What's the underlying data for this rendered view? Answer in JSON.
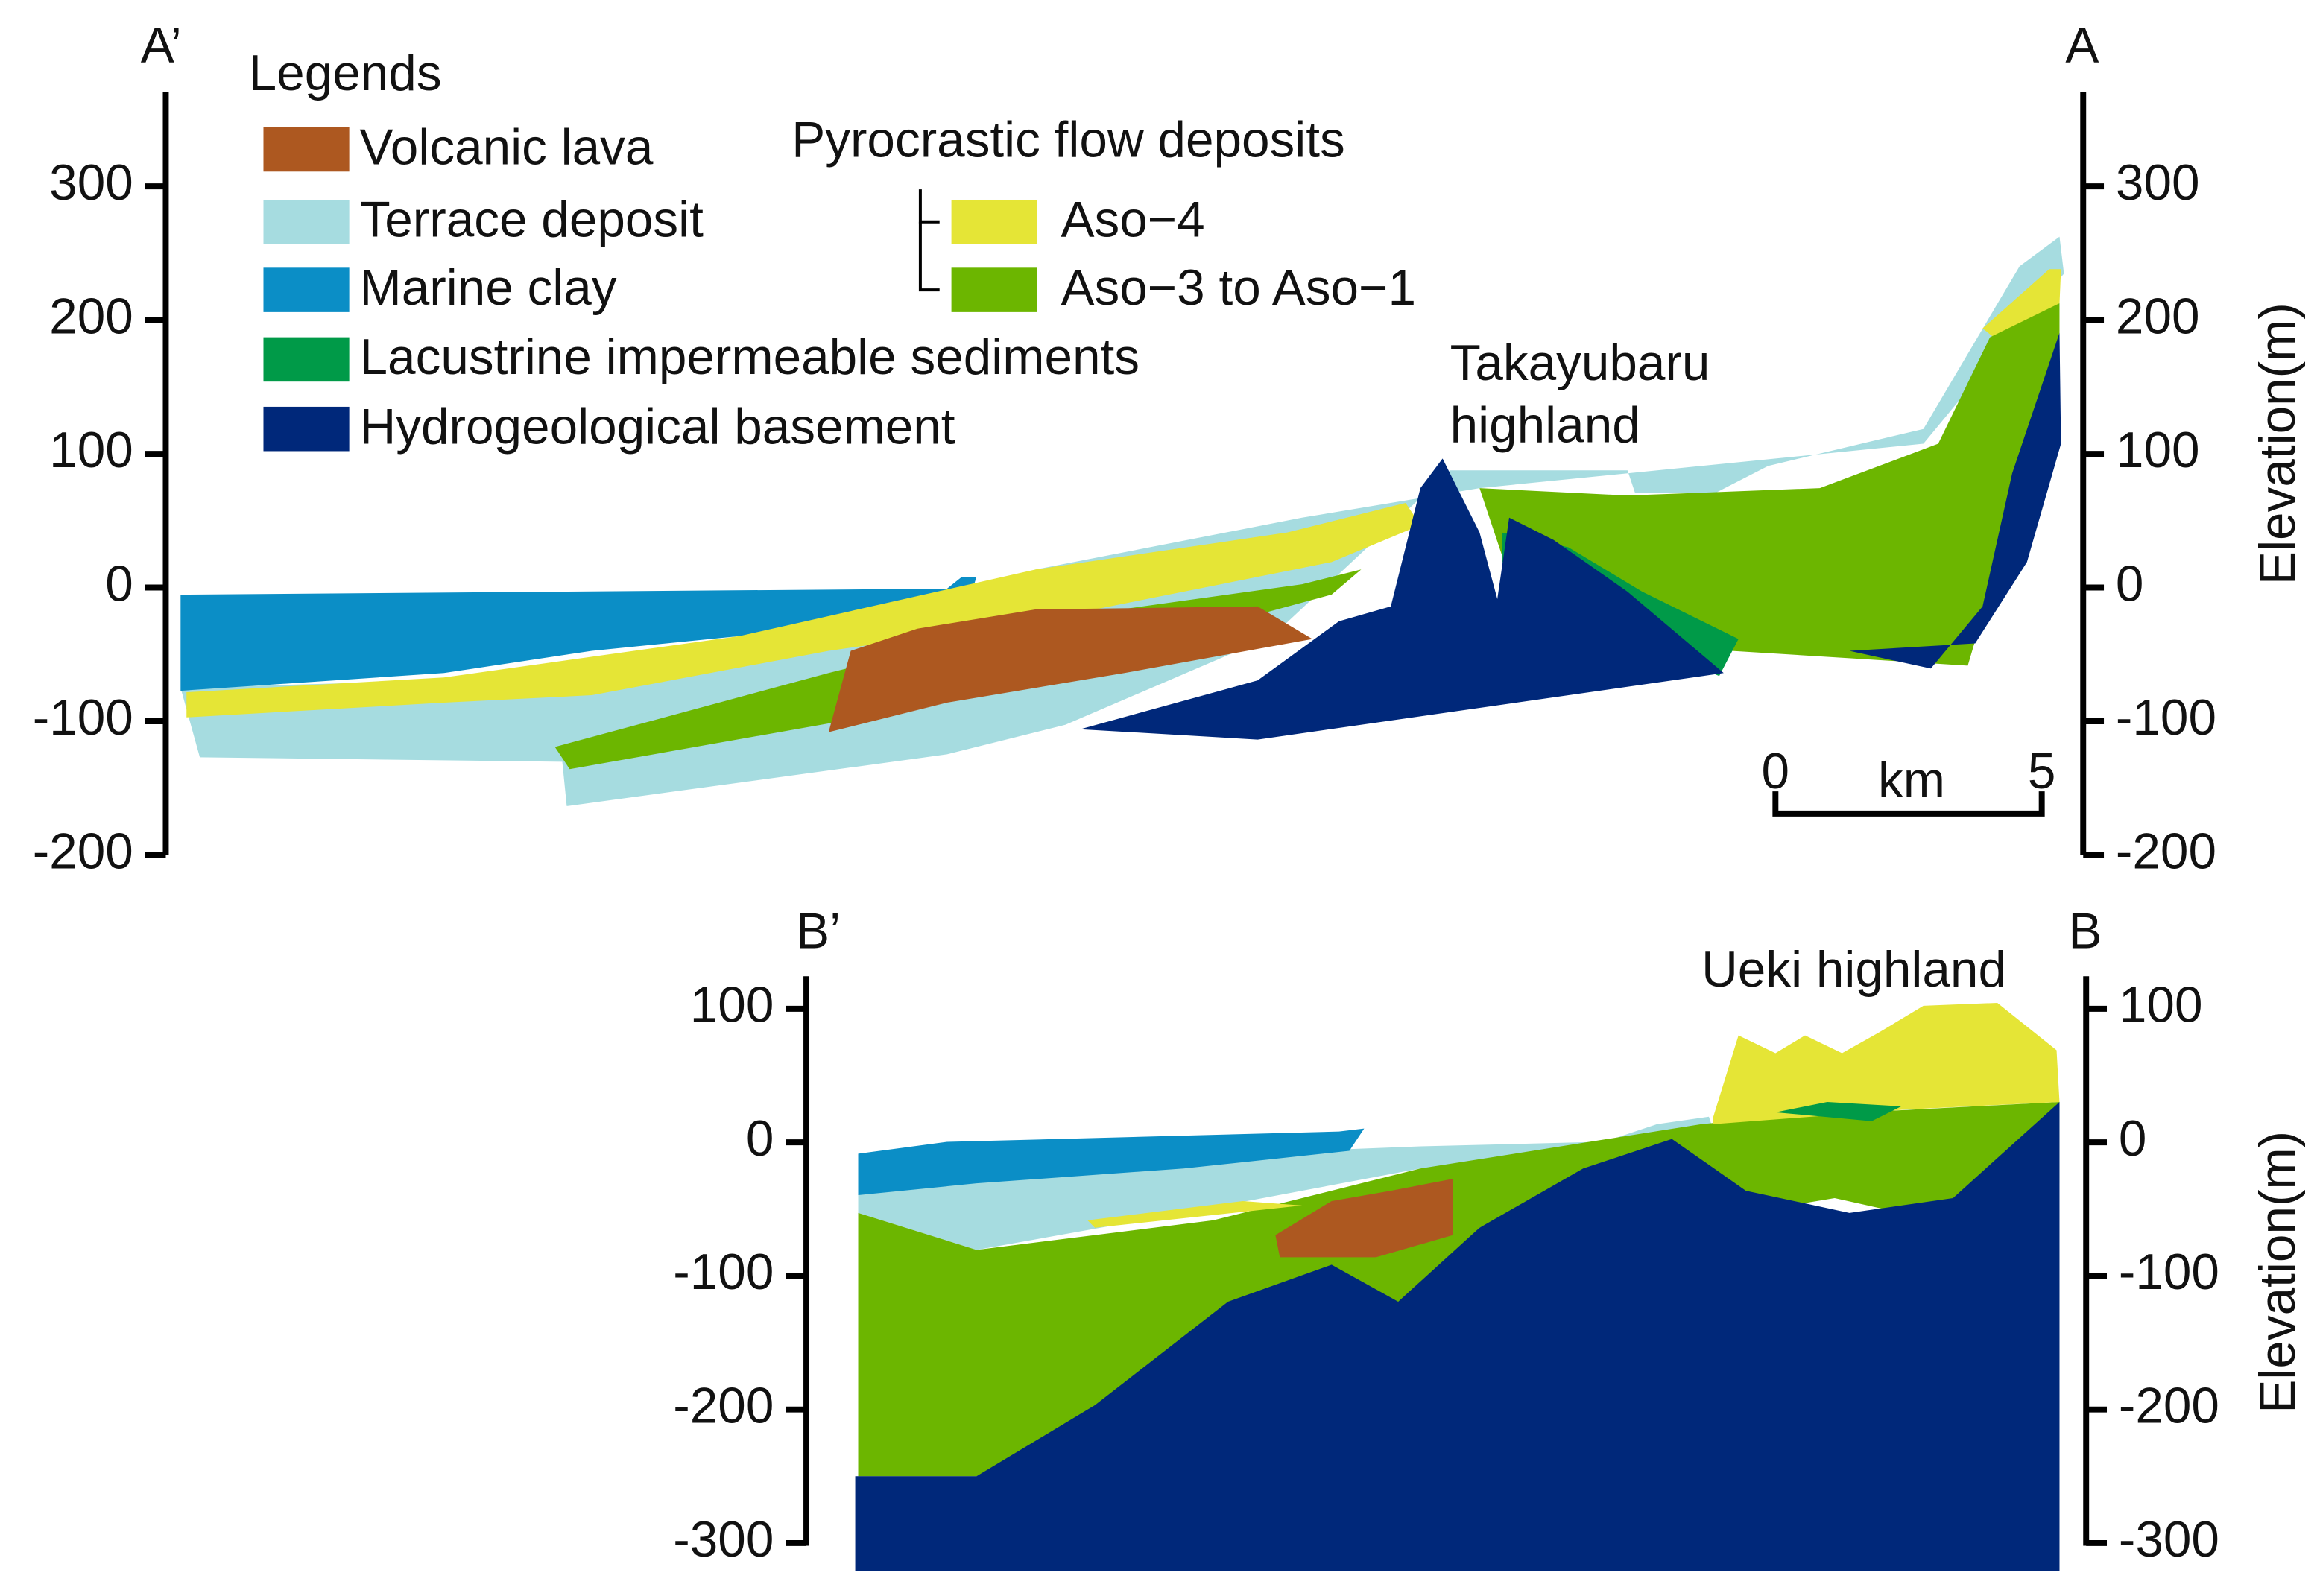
{
  "legend": {
    "title": "Legends",
    "items": [
      "Volcanic lava",
      "Terrace deposit",
      "Marine clay",
      "Lacustrine impermeable sediments",
      "Hydrogeological basement"
    ],
    "group_title": "Pyrocrastic flow deposits",
    "group_items": [
      "Aso−4",
      "Aso−3 to Aso−1"
    ]
  },
  "section_a": {
    "left_label": "A’",
    "right_label": "A",
    "ticks": [
      "300",
      "200",
      "100",
      "0",
      "-100",
      "-200"
    ],
    "axis_title": "Elevation(m)",
    "annotation": [
      "Takayubaru",
      "highland"
    ],
    "scale": {
      "start": "0",
      "unit": "km",
      "end": "5"
    }
  },
  "section_b": {
    "left_label": "B’",
    "right_label": "B",
    "ticks": [
      "100",
      "0",
      "-100",
      "-200",
      "-300"
    ],
    "axis_title": "Elevation(m)",
    "annotation": [
      "Ueki highland"
    ]
  }
}
